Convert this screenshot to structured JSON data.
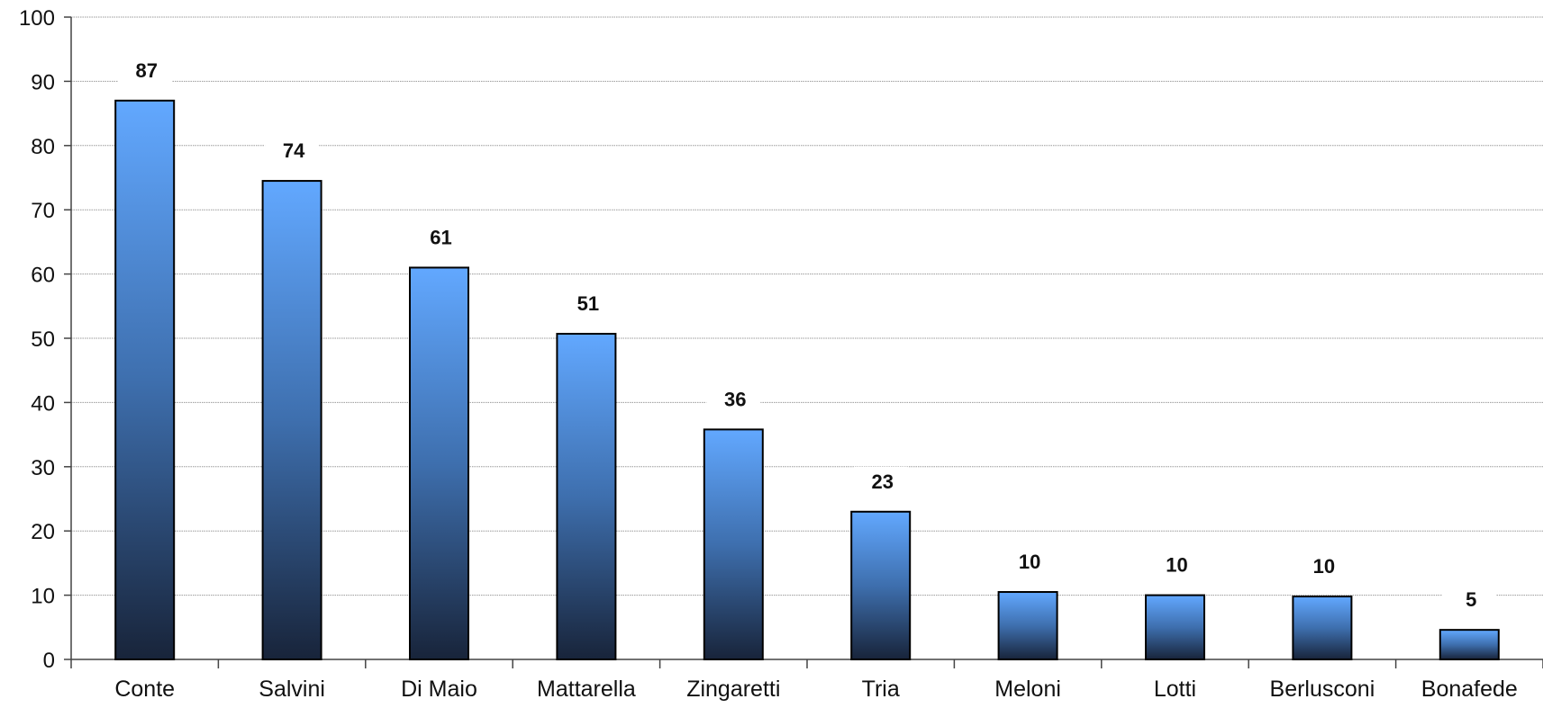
{
  "chart_data": {
    "type": "bar",
    "title": "",
    "xlabel": "",
    "ylabel": "",
    "ylim": [
      0,
      100
    ],
    "yticks": [
      0,
      10,
      20,
      30,
      40,
      50,
      60,
      70,
      80,
      90,
      100
    ],
    "grid": true,
    "legend": "none",
    "categories": [
      "Conte",
      "Salvini",
      "Di Maio",
      "Mattarella",
      "Zingaretti",
      "Tria",
      "Meloni",
      "Lotti",
      "Berlusconi",
      "Bonafede"
    ],
    "values": [
      87,
      74.5,
      61,
      50.7,
      35.8,
      23,
      10.5,
      10,
      9.8,
      4.6
    ],
    "data_labels": [
      "87",
      "74",
      "61",
      "51",
      "36",
      "23",
      "10",
      "10",
      "10",
      "5"
    ],
    "colors": {
      "bar_top": "#62a8ff",
      "bar_bottom": "#18243a",
      "bar_border": "#000000",
      "grid": "#9a9a9a",
      "axis": "#444444"
    }
  }
}
